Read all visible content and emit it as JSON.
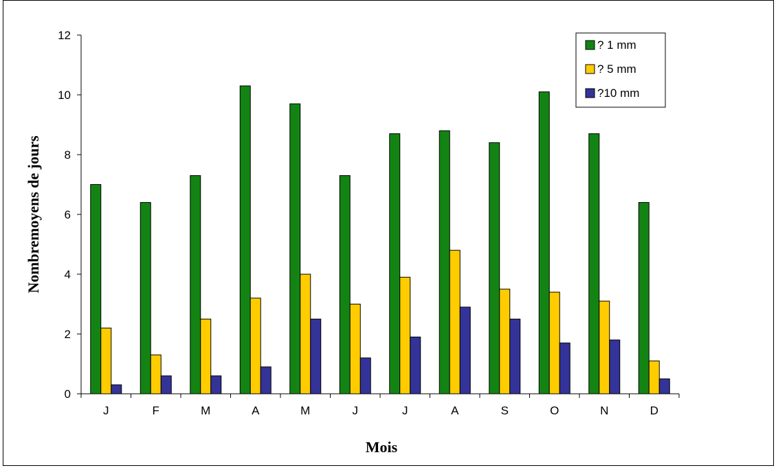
{
  "chart_data": {
    "type": "bar",
    "title": "",
    "xlabel": "Mois",
    "ylabel": "Nombremoyens de jours",
    "categories": [
      "J",
      "F",
      "M",
      "A",
      "M",
      "J",
      "J",
      "A",
      "S",
      "O",
      "N",
      "D"
    ],
    "ylim": [
      0,
      12
    ],
    "yticks": [
      0,
      2,
      4,
      6,
      8,
      10,
      12
    ],
    "grid": false,
    "legend_position": "top-right",
    "series": [
      {
        "name": "? 1 mm",
        "color": "#138413",
        "values": [
          7.0,
          6.4,
          7.3,
          10.3,
          9.7,
          7.3,
          8.7,
          8.8,
          8.4,
          10.1,
          8.7,
          6.4
        ]
      },
      {
        "name": "? 5 mm",
        "color": "#FFCC00",
        "values": [
          2.2,
          1.3,
          2.5,
          3.2,
          4.0,
          3.0,
          3.9,
          4.8,
          3.5,
          3.4,
          3.1,
          1.1
        ]
      },
      {
        "name": "?10 mm",
        "color": "#333399",
        "values": [
          0.3,
          0.6,
          0.6,
          0.9,
          2.5,
          1.2,
          1.9,
          2.9,
          2.5,
          1.7,
          1.8,
          0.5
        ]
      }
    ]
  }
}
